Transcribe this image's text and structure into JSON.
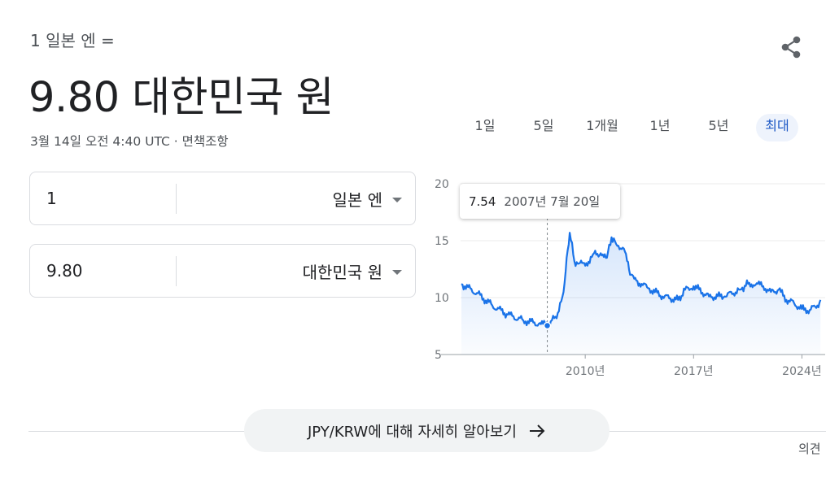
{
  "header": {
    "from_label": "1 일본 엔 =",
    "rate_value": "9.80 대한민국 원",
    "meta": "3월 14일 오전 4:40 UTC · 면책조항"
  },
  "converter": {
    "from": {
      "amount": "1",
      "currency": "일본 엔"
    },
    "to": {
      "amount": "9.80",
      "currency": "대한민국 원"
    }
  },
  "range_tabs": [
    "1일",
    "5일",
    "1개월",
    "1년",
    "5년",
    "최대"
  ],
  "active_range": "최대",
  "tooltip": {
    "value": "7.54",
    "date": "2007년 7월 20일"
  },
  "more_button": "JPY/KRW에 대해 자세히 알아보기",
  "feedback_link": "의견",
  "icons": {
    "share": "share-icon",
    "arrow": "arrow-right-icon",
    "caret": "caret-down-icon"
  },
  "colors": {
    "line": "#1a73e8",
    "active_tab_text": "#1a56c4",
    "active_tab_bg": "#eef3fc"
  },
  "chart_data": {
    "type": "area",
    "yticks": [
      20,
      15,
      10,
      5
    ],
    "ylim": [
      5,
      20
    ],
    "xticks": [
      "2010년",
      "2017년",
      "2024년"
    ],
    "x": [
      2002.0,
      2003.0,
      2004.0,
      2005.0,
      2006.0,
      2007.0,
      2007.55,
      2008.0,
      2008.3,
      2008.6,
      2008.8,
      2009.0,
      2009.3,
      2009.6,
      2010.0,
      2010.5,
      2011.0,
      2011.4,
      2011.7,
      2012.0,
      2012.5,
      2012.9,
      2013.3,
      2014.0,
      2015.0,
      2016.0,
      2016.6,
      2017.0,
      2018.0,
      2019.0,
      2020.0,
      2020.6,
      2021.5,
      2022.0,
      2022.5,
      2023.0,
      2023.5,
      2024.0,
      2024.5,
      2025.0,
      2025.2
    ],
    "y": [
      11.2,
      10.4,
      9.3,
      8.5,
      8.0,
      7.7,
      7.54,
      8.2,
      8.8,
      10.5,
      13.5,
      15.7,
      13.2,
      13.0,
      12.8,
      13.8,
      13.9,
      13.5,
      15.3,
      14.7,
      14.3,
      12.0,
      11.5,
      10.9,
      10.1,
      9.8,
      10.9,
      11.0,
      10.1,
      10.1,
      10.7,
      11.3,
      11.0,
      10.5,
      10.7,
      9.8,
      9.5,
      9.0,
      8.9,
      9.3,
      9.8
    ],
    "highlight": {
      "x": 2007.55,
      "y": 7.54
    }
  }
}
